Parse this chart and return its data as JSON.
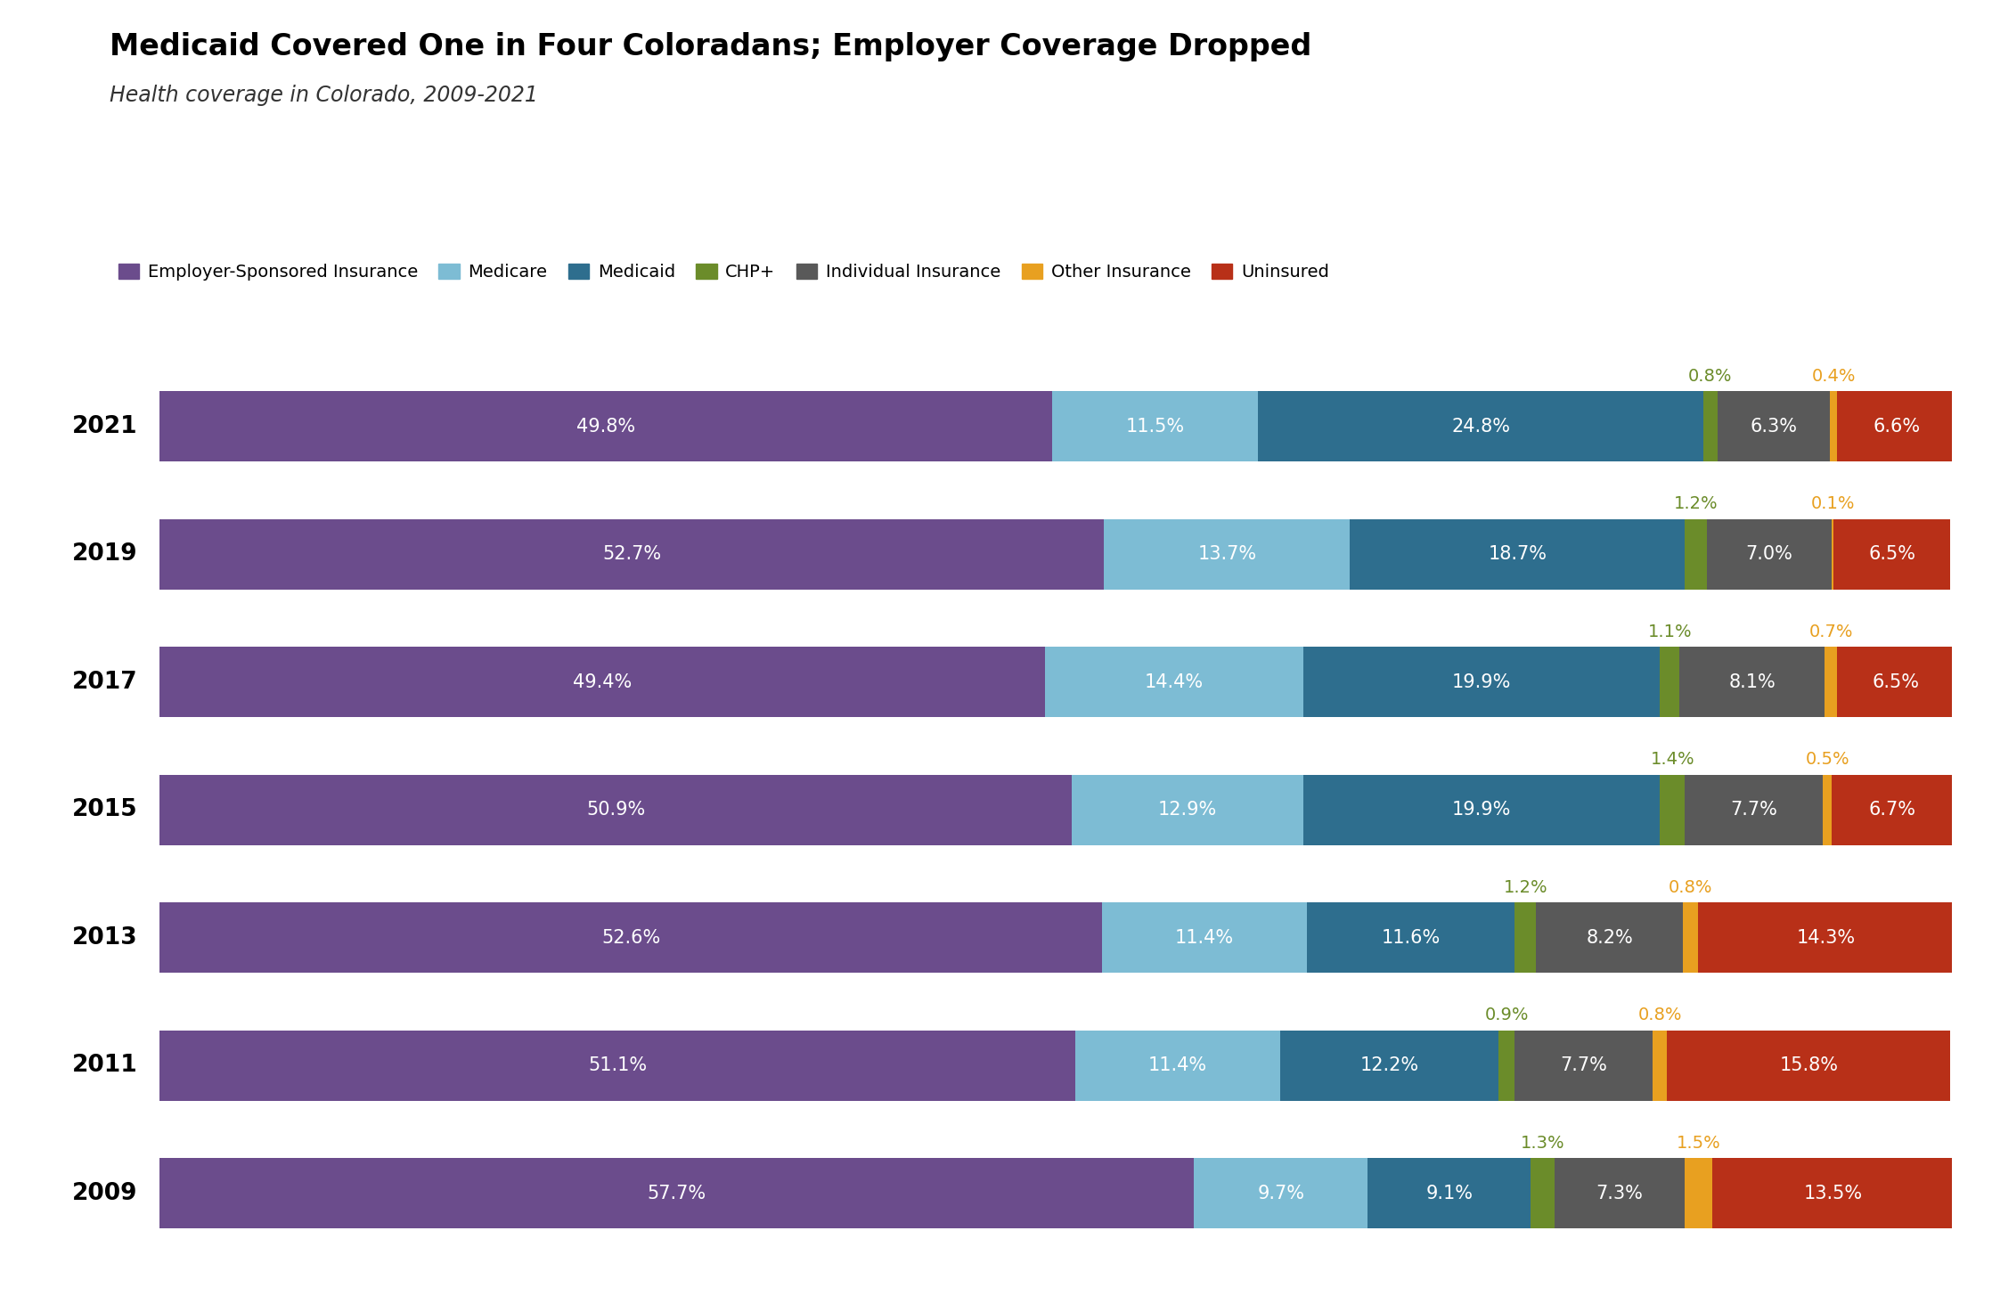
{
  "title": "Medicaid Covered One in Four Coloradans; Employer Coverage Dropped",
  "subtitle": "Health coverage in Colorado, 2009-2021",
  "years": [
    2021,
    2019,
    2017,
    2015,
    2013,
    2011,
    2009
  ],
  "categories": [
    "Employer-Sponsored Insurance",
    "Medicare",
    "Medicaid",
    "CHP+",
    "Individual Insurance",
    "Other Insurance",
    "Uninsured"
  ],
  "colors": [
    "#6b4c8c",
    "#7dbcd4",
    "#2e6e8e",
    "#6b8c2a",
    "#595959",
    "#e8a020",
    "#b83018"
  ],
  "data": {
    "2021": [
      49.8,
      11.5,
      24.8,
      0.8,
      6.3,
      0.4,
      6.6
    ],
    "2019": [
      52.7,
      13.7,
      18.7,
      1.2,
      7.0,
      0.1,
      6.5
    ],
    "2017": [
      49.4,
      14.4,
      19.9,
      1.1,
      8.1,
      0.7,
      6.5
    ],
    "2015": [
      50.9,
      12.9,
      19.9,
      1.4,
      7.7,
      0.5,
      6.7
    ],
    "2013": [
      52.6,
      11.4,
      11.6,
      1.2,
      8.2,
      0.8,
      14.3
    ],
    "2011": [
      51.1,
      11.4,
      12.2,
      0.9,
      7.7,
      0.8,
      15.8
    ],
    "2009": [
      57.7,
      9.7,
      9.1,
      1.3,
      7.3,
      1.5,
      13.5
    ]
  },
  "background_color": "#ffffff",
  "title_fontsize": 24,
  "subtitle_fontsize": 17,
  "label_fontsize": 15,
  "year_fontsize": 19,
  "annotation_fontsize": 14,
  "bar_height": 0.55,
  "legend_fontsize": 14
}
